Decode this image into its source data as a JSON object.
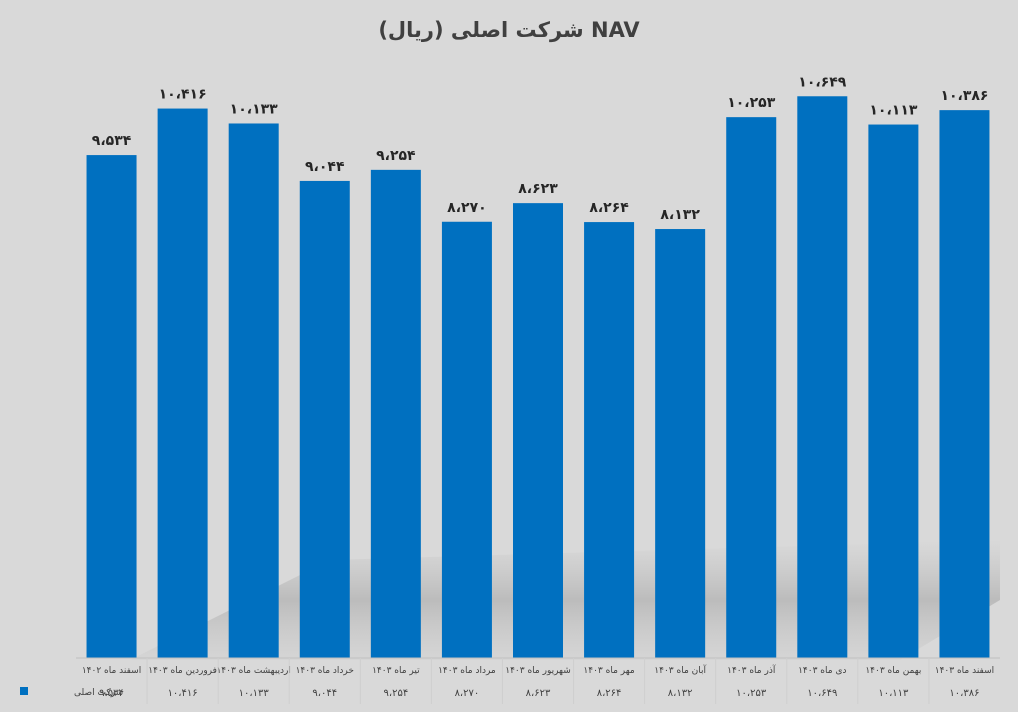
{
  "chart_data": {
    "type": "bar",
    "title": "NAV شرکت اصلی (ریال)",
    "categories": [
      "اسفند ماه ۱۴۰۲",
      "فروردین ماه ۱۴۰۳",
      "اردیبهشت ماه ۱۴۰۳",
      "خرداد ماه ۱۴۰۳",
      "تیر ماه ۱۴۰۳",
      "مرداد ماه ۱۴۰۳",
      "شهریور ماه ۱۴۰۳",
      "مهر ماه ۱۴۰۳",
      "آبان ماه ۱۴۰۳",
      "آذر ماه ۱۴۰۳",
      "دی ماه ۱۴۰۳",
      "بهمن ماه ۱۴۰۳",
      "اسفند ماه ۱۴۰۳"
    ],
    "series": [
      {
        "name": "شرکت اصلی",
        "color": "#0070c0",
        "values": [
          9534,
          10416,
          10133,
          9044,
          9254,
          8270,
          8623,
          8264,
          8132,
          10253,
          10649,
          10113,
          10386
        ],
        "labels": [
          "۹،۵۳۴",
          "۱۰،۴۱۶",
          "۱۰،۱۳۳",
          "۹،۰۴۴",
          "۹،۲۵۴",
          "۸،۲۷۰",
          "۸،۶۲۳",
          "۸،۲۶۴",
          "۸،۱۳۲",
          "۱۰،۲۵۳",
          "۱۰،۶۴۹",
          "۱۰،۱۱۳",
          "۱۰،۳۸۶"
        ]
      }
    ],
    "ylim": [
      0,
      12000
    ],
    "grid": false,
    "legend": "bottom-left",
    "data_table": true
  }
}
